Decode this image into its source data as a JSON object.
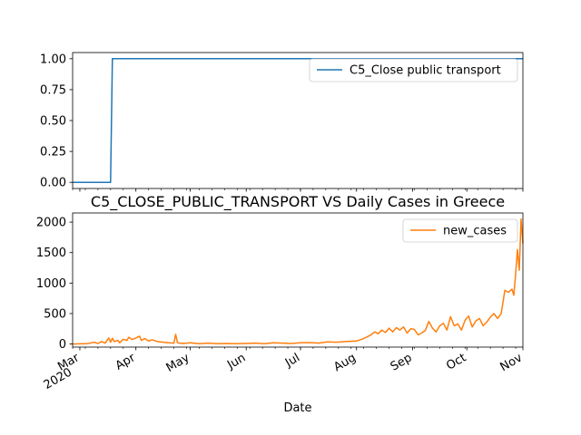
{
  "chart_data": [
    {
      "type": "line",
      "title": "",
      "xlabel": "",
      "ylabel": "",
      "ylim": [
        -0.05,
        1.05
      ],
      "yticks": [
        "0.00",
        "0.25",
        "0.50",
        "0.75",
        "1.00"
      ],
      "ytick_values": [
        0,
        0.25,
        0.5,
        0.75,
        1.0
      ],
      "x_range": [
        "2020-02-26",
        "2020-11-01"
      ],
      "legend_placement": "top-right",
      "series": [
        {
          "name": "C5_Close public transport",
          "color": "#1f77b4",
          "points": [
            {
              "x": "2020-02-26",
              "y": 0
            },
            {
              "x": "2020-03-18",
              "y": 0
            },
            {
              "x": "2020-03-19",
              "y": 1
            },
            {
              "x": "2020-11-01",
              "y": 1
            }
          ]
        }
      ]
    },
    {
      "type": "line",
      "title": "C5_CLOSE_PUBLIC_TRANSPORT VS Daily Cases in Greece",
      "xlabel": "Date",
      "ylabel": "",
      "ylim": [
        -50,
        2150
      ],
      "yticks": [
        "0",
        "500",
        "1000",
        "1500",
        "2000"
      ],
      "ytick_values": [
        0,
        500,
        1000,
        1500,
        2000
      ],
      "x_range": [
        "2020-02-26",
        "2020-11-01"
      ],
      "xticks": [
        {
          "date": "2020-03-01",
          "label": "Mar",
          "sublabel": "2020"
        },
        {
          "date": "2020-04-01",
          "label": "Apr",
          "sublabel": ""
        },
        {
          "date": "2020-05-01",
          "label": "May",
          "sublabel": ""
        },
        {
          "date": "2020-06-01",
          "label": "Jun",
          "sublabel": ""
        },
        {
          "date": "2020-07-01",
          "label": "Jul",
          "sublabel": ""
        },
        {
          "date": "2020-08-01",
          "label": "Aug",
          "sublabel": ""
        },
        {
          "date": "2020-09-01",
          "label": "Sep",
          "sublabel": ""
        },
        {
          "date": "2020-10-01",
          "label": "Oct",
          "sublabel": ""
        },
        {
          "date": "2020-11-01",
          "label": "Nov",
          "sublabel": ""
        }
      ],
      "legend_placement": "top-right",
      "series": [
        {
          "name": "new_cases",
          "color": "#ff7f0e",
          "points": [
            {
              "x": "2020-02-26",
              "y": 1
            },
            {
              "x": "2020-03-01",
              "y": 3
            },
            {
              "x": "2020-03-05",
              "y": 5
            },
            {
              "x": "2020-03-09",
              "y": 30
            },
            {
              "x": "2020-03-11",
              "y": 10
            },
            {
              "x": "2020-03-13",
              "y": 40
            },
            {
              "x": "2020-03-15",
              "y": 15
            },
            {
              "x": "2020-03-17",
              "y": 100
            },
            {
              "x": "2020-03-18",
              "y": 30
            },
            {
              "x": "2020-03-19",
              "y": 95
            },
            {
              "x": "2020-03-20",
              "y": 40
            },
            {
              "x": "2020-03-22",
              "y": 60
            },
            {
              "x": "2020-03-23",
              "y": 20
            },
            {
              "x": "2020-03-25",
              "y": 80
            },
            {
              "x": "2020-03-27",
              "y": 60
            },
            {
              "x": "2020-03-28",
              "y": 110
            },
            {
              "x": "2020-03-30",
              "y": 75
            },
            {
              "x": "2020-04-01",
              "y": 100
            },
            {
              "x": "2020-04-03",
              "y": 130
            },
            {
              "x": "2020-04-04",
              "y": 60
            },
            {
              "x": "2020-04-06",
              "y": 90
            },
            {
              "x": "2020-04-08",
              "y": 50
            },
            {
              "x": "2020-04-10",
              "y": 70
            },
            {
              "x": "2020-04-13",
              "y": 40
            },
            {
              "x": "2020-04-16",
              "y": 30
            },
            {
              "x": "2020-04-19",
              "y": 20
            },
            {
              "x": "2020-04-22",
              "y": 15
            },
            {
              "x": "2020-04-23",
              "y": 160
            },
            {
              "x": "2020-04-24",
              "y": 20
            },
            {
              "x": "2020-04-27",
              "y": 10
            },
            {
              "x": "2020-05-01",
              "y": 20
            },
            {
              "x": "2020-05-06",
              "y": 5
            },
            {
              "x": "2020-05-11",
              "y": 15
            },
            {
              "x": "2020-05-16",
              "y": 5
            },
            {
              "x": "2020-05-21",
              "y": 10
            },
            {
              "x": "2020-05-26",
              "y": 5
            },
            {
              "x": "2020-06-01",
              "y": 10
            },
            {
              "x": "2020-06-06",
              "y": 15
            },
            {
              "x": "2020-06-11",
              "y": 5
            },
            {
              "x": "2020-06-16",
              "y": 20
            },
            {
              "x": "2020-06-21",
              "y": 15
            },
            {
              "x": "2020-06-26",
              "y": 10
            },
            {
              "x": "2020-07-01",
              "y": 20
            },
            {
              "x": "2020-07-06",
              "y": 25
            },
            {
              "x": "2020-07-11",
              "y": 15
            },
            {
              "x": "2020-07-16",
              "y": 35
            },
            {
              "x": "2020-07-21",
              "y": 30
            },
            {
              "x": "2020-07-26",
              "y": 40
            },
            {
              "x": "2020-08-01",
              "y": 50
            },
            {
              "x": "2020-08-04",
              "y": 80
            },
            {
              "x": "2020-08-07",
              "y": 120
            },
            {
              "x": "2020-08-09",
              "y": 150
            },
            {
              "x": "2020-08-11",
              "y": 200
            },
            {
              "x": "2020-08-13",
              "y": 170
            },
            {
              "x": "2020-08-15",
              "y": 230
            },
            {
              "x": "2020-08-17",
              "y": 190
            },
            {
              "x": "2020-08-19",
              "y": 260
            },
            {
              "x": "2020-08-21",
              "y": 200
            },
            {
              "x": "2020-08-23",
              "y": 270
            },
            {
              "x": "2020-08-25",
              "y": 230
            },
            {
              "x": "2020-08-27",
              "y": 280
            },
            {
              "x": "2020-08-29",
              "y": 180
            },
            {
              "x": "2020-08-31",
              "y": 250
            },
            {
              "x": "2020-09-02",
              "y": 240
            },
            {
              "x": "2020-09-04",
              "y": 150
            },
            {
              "x": "2020-09-06",
              "y": 180
            },
            {
              "x": "2020-09-08",
              "y": 220
            },
            {
              "x": "2020-09-10",
              "y": 370
            },
            {
              "x": "2020-09-12",
              "y": 260
            },
            {
              "x": "2020-09-14",
              "y": 200
            },
            {
              "x": "2020-09-16",
              "y": 300
            },
            {
              "x": "2020-09-18",
              "y": 340
            },
            {
              "x": "2020-09-20",
              "y": 230
            },
            {
              "x": "2020-09-22",
              "y": 450
            },
            {
              "x": "2020-09-24",
              "y": 300
            },
            {
              "x": "2020-09-26",
              "y": 330
            },
            {
              "x": "2020-09-28",
              "y": 230
            },
            {
              "x": "2020-09-30",
              "y": 390
            },
            {
              "x": "2020-10-02",
              "y": 460
            },
            {
              "x": "2020-10-04",
              "y": 280
            },
            {
              "x": "2020-10-06",
              "y": 380
            },
            {
              "x": "2020-10-08",
              "y": 420
            },
            {
              "x": "2020-10-10",
              "y": 300
            },
            {
              "x": "2020-10-12",
              "y": 360
            },
            {
              "x": "2020-10-14",
              "y": 440
            },
            {
              "x": "2020-10-16",
              "y": 500
            },
            {
              "x": "2020-10-18",
              "y": 420
            },
            {
              "x": "2020-10-20",
              "y": 500
            },
            {
              "x": "2020-10-22",
              "y": 880
            },
            {
              "x": "2020-10-24",
              "y": 850
            },
            {
              "x": "2020-10-26",
              "y": 900
            },
            {
              "x": "2020-10-27",
              "y": 800
            },
            {
              "x": "2020-10-28",
              "y": 1150
            },
            {
              "x": "2020-10-29",
              "y": 1550
            },
            {
              "x": "2020-10-30",
              "y": 1210
            },
            {
              "x": "2020-10-31",
              "y": 2050
            },
            {
              "x": "2020-11-01",
              "y": 1650
            }
          ]
        }
      ]
    }
  ]
}
